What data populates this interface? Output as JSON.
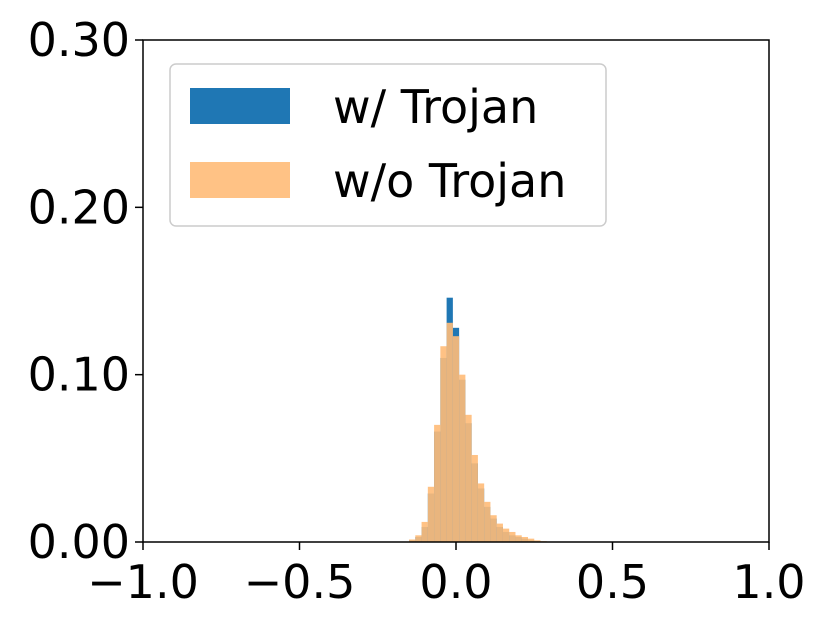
{
  "chart_data": {
    "type": "bar",
    "title": "",
    "xlabel": "",
    "ylabel": "",
    "xlim": [
      -1.0,
      1.0
    ],
    "ylim": [
      0.0,
      0.3
    ],
    "x_ticks": [
      -1.0,
      -0.5,
      0.0,
      0.5,
      1.0
    ],
    "x_tick_labels": [
      "−1.0",
      "−0.5",
      "0.0",
      "0.5",
      "1.0"
    ],
    "y_ticks": [
      0.0,
      0.1,
      0.2,
      0.3
    ],
    "y_tick_labels": [
      "0.00",
      "0.10",
      "0.20",
      "0.30"
    ],
    "grid": false,
    "legend_position": "top-left",
    "bin_width": 0.02,
    "bin_start": -0.15,
    "series": [
      {
        "name": "w/ Trojan",
        "color": "#1f77b4",
        "opacity": 1.0,
        "values": [
          0.001,
          0.003,
          0.009,
          0.029,
          0.066,
          0.11,
          0.146,
          0.128,
          0.097,
          0.071,
          0.047,
          0.032,
          0.021,
          0.014,
          0.009,
          0.006,
          0.004,
          0.003,
          0.002,
          0.001,
          0.0005,
          0.0003
        ]
      },
      {
        "name": "w/o Trojan",
        "color": "#ffbb78",
        "opacity": 0.9,
        "values": [
          0.0015,
          0.004,
          0.012,
          0.033,
          0.07,
          0.117,
          0.131,
          0.123,
          0.1,
          0.076,
          0.052,
          0.035,
          0.024,
          0.016,
          0.011,
          0.008,
          0.006,
          0.004,
          0.003,
          0.002,
          0.001,
          0.0005
        ]
      }
    ]
  }
}
